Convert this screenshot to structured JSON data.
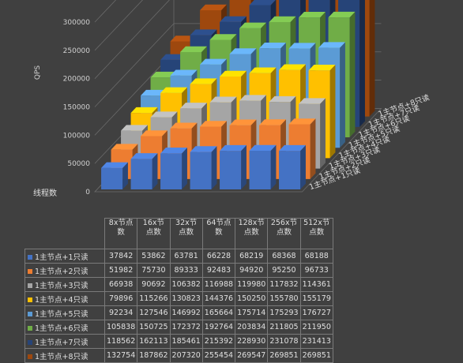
{
  "chart_data": {
    "type": "bar",
    "subtype": "3d-clustered-column",
    "ylabel": "QPS",
    "xlabel": "线程数",
    "ylim": [
      0,
      300000
    ],
    "yticks": [
      "0",
      "50000",
      "100000",
      "150000",
      "200000",
      "250000",
      "300000"
    ],
    "categories": [
      "8x节点数",
      "16x节点数",
      "32x节点数",
      "64节点数",
      "128x节点数",
      "256x节点数",
      "512x节点数"
    ],
    "series": [
      {
        "name": "1主节点+1只读",
        "color": "#4472c4",
        "values": [
          37842,
          53862,
          63781,
          66228,
          68219,
          68368,
          68188
        ]
      },
      {
        "name": "1主节点+2只读",
        "color": "#ed7d31",
        "values": [
          51982,
          75730,
          89333,
          92483,
          94920,
          95250,
          96733
        ]
      },
      {
        "name": "1主节点+3只读",
        "color": "#a5a5a5",
        "values": [
          66938,
          90692,
          106382,
          116988,
          119980,
          117832,
          114361
        ]
      },
      {
        "name": "1主节点+4只读",
        "color": "#ffc000",
        "values": [
          79896,
          115266,
          130823,
          144376,
          150250,
          155780,
          155179
        ]
      },
      {
        "name": "1主节点+5只读",
        "color": "#5b9bd5",
        "values": [
          92234,
          127546,
          146992,
          165664,
          175714,
          175293,
          176727
        ]
      },
      {
        "name": "1主节点+6只读",
        "color": "#70ad47",
        "values": [
          105838,
          150725,
          172372,
          192764,
          203834,
          211805,
          211950
        ]
      },
      {
        "name": "1主节点+7只读",
        "color": "#264478",
        "values": [
          118562,
          162113,
          185461,
          215392,
          228930,
          231078,
          231413
        ]
      },
      {
        "name": "1主节点+8只读",
        "color": "#9e480e",
        "values": [
          132754,
          187862,
          207320,
          255454,
          269547,
          269851,
          269851
        ]
      }
    ],
    "grid": true,
    "legend": "table"
  }
}
